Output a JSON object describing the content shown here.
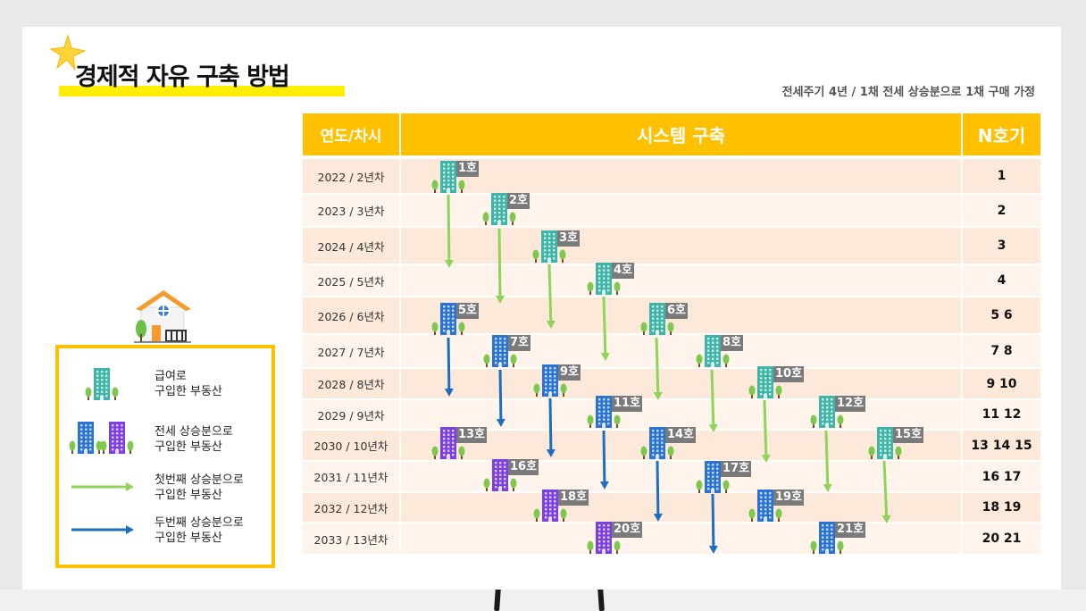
{
  "title": "경제적 자유 구축 방법",
  "subtitle": "전세주기 4년 / 1채 전세 상승분으로 1채 구매 가정",
  "table": {
    "headers": {
      "year": "연도/차시",
      "system": "시스템 구축",
      "n": "N호기"
    },
    "rows": [
      {
        "year": "2022 / 2년차",
        "n": "1"
      },
      {
        "year": "2023 / 3년차",
        "n": "2"
      },
      {
        "year": "2024 / 4년차",
        "n": "3"
      },
      {
        "year": "2025 / 5년차",
        "n": "4"
      },
      {
        "year": "2026 / 6년차",
        "n": "5 6"
      },
      {
        "year": "2027 / 7년차",
        "n": "7 8"
      },
      {
        "year": "2028 / 8년차",
        "n": "9 10"
      },
      {
        "year": "2029 / 9년차",
        "n": "11 12"
      },
      {
        "year": "2030 / 10년차",
        "n": "13 14 15"
      },
      {
        "year": "2031 / 11년차",
        "n": "16 17"
      },
      {
        "year": "2032 / 12년차",
        "n": "18 19"
      },
      {
        "year": "2033 / 13년차",
        "n": "20  21"
      }
    ]
  },
  "buildings": [
    {
      "label": "1호",
      "color": "teal"
    },
    {
      "label": "2호",
      "color": "teal"
    },
    {
      "label": "3호",
      "color": "teal"
    },
    {
      "label": "4호",
      "color": "teal"
    },
    {
      "label": "5호",
      "color": "blue"
    },
    {
      "label": "6호",
      "color": "teal"
    },
    {
      "label": "7호",
      "color": "blue"
    },
    {
      "label": "8호",
      "color": "teal"
    },
    {
      "label": "9호",
      "color": "blue"
    },
    {
      "label": "10호",
      "color": "teal"
    },
    {
      "label": "11호",
      "color": "blue"
    },
    {
      "label": "12호",
      "color": "teal"
    },
    {
      "label": "13호",
      "color": "purple"
    },
    {
      "label": "14호",
      "color": "blue"
    },
    {
      "label": "15호",
      "color": "teal"
    },
    {
      "label": "16호",
      "color": "purple"
    },
    {
      "label": "17호",
      "color": "blue"
    },
    {
      "label": "18호",
      "color": "purple"
    },
    {
      "label": "19호",
      "color": "blue"
    },
    {
      "label": "20호",
      "color": "purple"
    },
    {
      "label": "21호",
      "color": "blue"
    }
  ],
  "legend": {
    "salary": "급여로\n구입한 부동산",
    "jeonse": "전세 상승분으로\n구입한 부동산",
    "first": "첫번째 상승분으로\n구입한 부동산",
    "second": "두번째 상승분으로\n구입한 부동산"
  },
  "colors": {
    "header": "#ffc000",
    "row_dark": "#fde9d9",
    "row_light": "#fef4ec",
    "title_highlight": "#ffee00",
    "teal": "#3fb5a8",
    "blue": "#2a73d6",
    "purple": "#7b3fe4",
    "green_arrow": "#8ed35a",
    "blue_arrow": "#1e6ec0",
    "tree": "#7ec850"
  }
}
